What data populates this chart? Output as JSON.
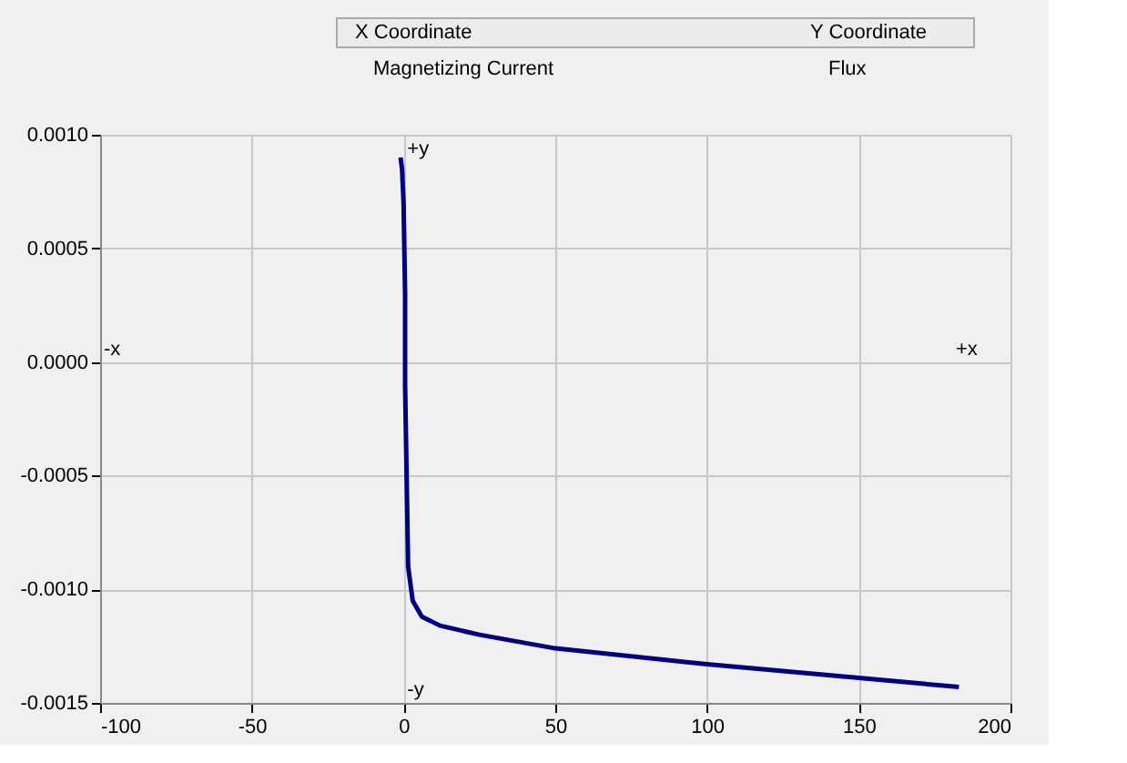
{
  "chart_data": {
    "type": "line",
    "xlabel": "Magnetizing Current",
    "ylabel": "Flux",
    "annotations": [
      "X Coordinate",
      "Y Coordinate",
      "+y",
      "-y",
      "-x",
      "+x"
    ],
    "series": [
      {
        "color": "#000080",
        "x": [
          -1,
          -0.5,
          0,
          0.5,
          0.5,
          1,
          1.5,
          3,
          6,
          12,
          25,
          50,
          100,
          150,
          183
        ],
        "values": [
          0.0009,
          0.00085,
          0.0007,
          0.0003,
          -0.0001,
          -0.0005,
          -0.0009,
          -0.00105,
          -0.00112,
          -0.00116,
          -0.0012,
          -0.00126,
          -0.00133,
          -0.00139,
          -0.00143
        ]
      }
    ],
    "xlim": [
      -100,
      200
    ],
    "xticks": [
      -100,
      -50,
      0,
      50,
      100,
      150,
      200
    ],
    "ylim": [
      -0.0015,
      0.001
    ],
    "yticks": [
      {
        "value": 0.001,
        "label": "0.0010"
      },
      {
        "value": 0.0005,
        "label": "0.0005"
      },
      {
        "value": 0,
        "label": "0.0000"
      },
      {
        "value": -0.0005,
        "label": "-0.0005"
      },
      {
        "value": -0.001,
        "label": "-0.0010"
      },
      {
        "value": -0.0015,
        "label": "-0.0015"
      }
    ],
    "grid": true,
    "marker": "none",
    "line_style": "solid"
  }
}
